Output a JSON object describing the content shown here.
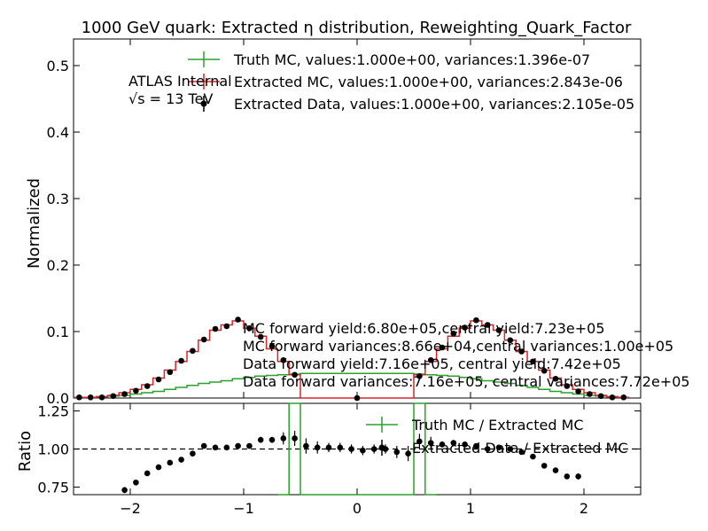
{
  "chart_data": [
    {
      "panel": "main",
      "type": "line",
      "title": "1000 GeV quark: Extracted η distribution, Reweighting_Quark_Factor",
      "ylabel": "Normalized",
      "xlabel": "",
      "xlim": [
        -2.5,
        2.5
      ],
      "ylim": [
        0,
        0.54
      ],
      "yticks": [
        0.0,
        0.1,
        0.2,
        0.3,
        0.4,
        0.5
      ],
      "ytick_labels": [
        "0.0",
        "0.1",
        "0.2",
        "0.3",
        "0.4",
        "0.5"
      ],
      "grid": false,
      "legend_position": "top",
      "bin_edges": [
        -2.5,
        -2.4,
        -2.3,
        -2.2,
        -2.1,
        -2.0,
        -1.9,
        -1.8,
        -1.7,
        -1.6,
        -1.5,
        -1.4,
        -1.3,
        -1.2,
        -1.1,
        -1.0,
        -0.9,
        -0.8,
        -0.7,
        -0.6,
        -0.5,
        0.5,
        0.6,
        0.7,
        0.8,
        0.9,
        1.0,
        1.1,
        1.2,
        1.3,
        1.4,
        1.5,
        1.6,
        1.7,
        1.8,
        1.9,
        2.0,
        2.1,
        2.2,
        2.3,
        2.4,
        2.5
      ],
      "series": [
        {
          "name": "Truth MC, values:1.000e+00, variances:1.396e-07",
          "color": "#2ca02c",
          "style": "step",
          "values": [
            0.001,
            0.001,
            0.002,
            0.003,
            0.004,
            0.006,
            0.008,
            0.01,
            0.013,
            0.016,
            0.019,
            0.022,
            0.024,
            0.026,
            0.029,
            0.031,
            0.033,
            0.034,
            0.035,
            0.036,
            0.037,
            0.036,
            0.035,
            0.034,
            0.033,
            0.031,
            0.029,
            0.026,
            0.024,
            0.022,
            0.019,
            0.016,
            0.013,
            0.01,
            0.008,
            0.006,
            0.004,
            0.003,
            0.002,
            0.001
          ]
        },
        {
          "name": "Extracted MC, values:1.000e+00, variances:2.843e-06",
          "color": "#d62728",
          "style": "step",
          "values": [
            0.001,
            0.001,
            0.002,
            0.004,
            0.008,
            0.013,
            0.02,
            0.03,
            0.042,
            0.055,
            0.07,
            0.087,
            0.102,
            0.11,
            0.116,
            0.105,
            0.093,
            0.074,
            0.055,
            0.035,
            0.0,
            0.035,
            0.055,
            0.074,
            0.093,
            0.105,
            0.116,
            0.11,
            0.102,
            0.087,
            0.07,
            0.055,
            0.042,
            0.03,
            0.02,
            0.013,
            0.008,
            0.004,
            0.002,
            0.001
          ]
        },
        {
          "name": "Extracted Data, values:1.000e+00, variances:2.105e-05",
          "color": "#000000",
          "style": "points",
          "values": [
            0.001,
            0.001,
            0.001,
            0.003,
            0.006,
            0.011,
            0.018,
            0.028,
            0.039,
            0.056,
            0.071,
            0.088,
            0.104,
            0.108,
            0.118,
            0.105,
            0.092,
            0.078,
            0.057,
            0.035,
            0.0,
            0.033,
            0.057,
            0.076,
            0.097,
            0.106,
            0.117,
            0.11,
            0.102,
            0.087,
            0.07,
            0.055,
            0.041,
            0.029,
            0.018,
            0.01,
            0.006,
            0.003,
            0.001,
            0.001
          ]
        }
      ],
      "annotations": {
        "experiment": "ATLAS Internal",
        "energy": "√s =  13 TeV",
        "yields": [
          "MC forward yield:6.80e+05,central yield:7.23e+05",
          "MC forward variances:8.66e+04,central variances:1.00e+05",
          "Data forward yield:7.16e+05, central yield:7.42e+05",
          "Data forward variances:7.16e+05, central variances:7.72e+05"
        ]
      }
    },
    {
      "panel": "ratio",
      "type": "line",
      "ylabel": "Ratio",
      "xlim": [
        -2.5,
        2.5
      ],
      "ylim": [
        0.7,
        1.3
      ],
      "yticks": [
        0.75,
        1.0,
        1.25
      ],
      "ytick_labels": [
        "0.75",
        "1.00",
        "1.25"
      ],
      "xticks": [
        -2,
        -1,
        0,
        1,
        2
      ],
      "xtick_labels": [
        "−2",
        "−1",
        "0",
        "1",
        "2"
      ],
      "reference_line": 1.0,
      "legend_position": "top-right",
      "series": [
        {
          "name": "Truth MC / Extracted MC",
          "color": "#2ca02c",
          "style": "step",
          "points": [
            [
              -0.7,
              0.69
            ],
            [
              -0.6,
              0.69
            ],
            [
              -0.6,
              1.6
            ],
            [
              -0.5,
              1.6
            ],
            [
              -0.5,
              0.6
            ],
            [
              0.5,
              0.6
            ],
            [
              0.5,
              1.6
            ],
            [
              0.6,
              1.6
            ],
            [
              0.6,
              0.69
            ],
            [
              0.7,
              0.69
            ]
          ]
        },
        {
          "name": "Extracted Data / Extracted MC",
          "color": "#000000",
          "style": "points",
          "x": [
            -2.05,
            -1.95,
            -1.85,
            -1.75,
            -1.65,
            -1.55,
            -1.45,
            -1.35,
            -1.25,
            -1.15,
            -1.05,
            -0.95,
            -0.85,
            -0.75,
            -0.65,
            -0.55,
            0.55,
            0.65,
            0.75,
            0.85,
            0.95,
            1.05,
            1.15,
            1.25,
            1.35,
            1.45,
            1.55,
            1.65,
            1.75,
            1.85,
            1.95,
            -0.45,
            -0.35,
            -0.25,
            -0.15,
            -0.05,
            0.05,
            0.15,
            0.25,
            0.35,
            0.45
          ],
          "values": [
            0.73,
            0.78,
            0.84,
            0.88,
            0.91,
            0.93,
            0.97,
            1.02,
            1.01,
            1.01,
            1.02,
            1.02,
            1.06,
            1.06,
            1.07,
            1.07,
            1.05,
            1.04,
            1.03,
            1.04,
            1.03,
            1.02,
            1.0,
            1.01,
            1.0,
            0.98,
            0.95,
            0.89,
            0.86,
            0.82,
            0.82,
            1.02,
            1.01,
            1.01,
            1.01,
            1.0,
            0.99,
            1.0,
            1.0,
            0.98,
            0.97
          ],
          "errors": [
            0.02,
            0.015,
            0.01,
            0.01,
            0.01,
            0.01,
            0.01,
            0.01,
            0.01,
            0.01,
            0.01,
            0.015,
            0.02,
            0.02,
            0.04,
            0.05,
            0.05,
            0.04,
            0.02,
            0.02,
            0.015,
            0.01,
            0.01,
            0.01,
            0.01,
            0.01,
            0.01,
            0.01,
            0.01,
            0.015,
            0.02,
            0.05,
            0.04,
            0.03,
            0.03,
            0.03,
            0.03,
            0.03,
            0.03,
            0.04,
            0.05
          ]
        }
      ]
    }
  ]
}
